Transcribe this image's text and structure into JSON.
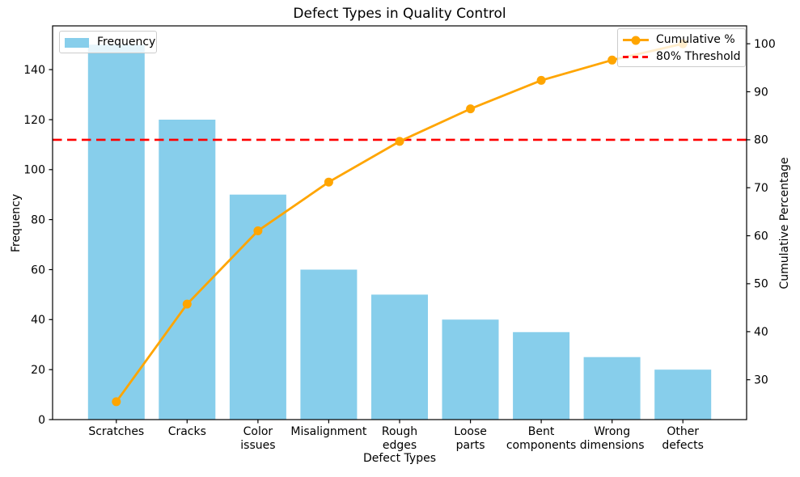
{
  "chart_data": {
    "type": "pareto_bar_line",
    "title": "Defect Types in Quality Control",
    "xlabel": "Defect Types",
    "ylabel_left": "Frequency",
    "ylabel_right": "Cumulative Percentage",
    "categories": [
      "Scratches",
      "Cracks",
      "Color issues",
      "Misalignment",
      "Rough edges",
      "Loose parts",
      "Bent components",
      "Wrong dimensions",
      "Other defects"
    ],
    "category_label_lines": [
      [
        "Scratches"
      ],
      [
        "Cracks"
      ],
      [
        "Color",
        "issues"
      ],
      [
        "Misalignment"
      ],
      [
        "Rough",
        "edges"
      ],
      [
        "Loose",
        "parts"
      ],
      [
        "Bent",
        "components"
      ],
      [
        "Wrong",
        "dimensions"
      ],
      [
        "Other",
        "defects"
      ]
    ],
    "series": [
      {
        "name": "Frequency",
        "kind": "bar",
        "color": "#87CEEB",
        "values": [
          150,
          120,
          90,
          60,
          50,
          40,
          35,
          25,
          20
        ]
      },
      {
        "name": "Cumulative %",
        "kind": "line",
        "color": "#FFA500",
        "values": [
          25.42,
          45.76,
          61.02,
          71.19,
          79.66,
          86.44,
          92.37,
          96.61,
          100.0
        ]
      }
    ],
    "threshold": {
      "label": "80% Threshold",
      "value": 80,
      "color": "#FF0000",
      "style": "dashed"
    },
    "axes": {
      "left": {
        "ticks": [
          0,
          20,
          40,
          60,
          80,
          100,
          120,
          140
        ],
        "range": [
          0,
          157.5
        ]
      },
      "right": {
        "ticks": [
          30,
          40,
          50,
          60,
          70,
          80,
          90,
          100
        ],
        "range": [
          21.69,
          103.73
        ]
      },
      "x": {
        "range": [
          -0.9,
          8.9
        ]
      }
    },
    "legend_left_items": [
      "Frequency"
    ],
    "legend_right_items": [
      "Cumulative %",
      "80% Threshold"
    ],
    "grid": false,
    "background": "#FFFFFF",
    "bar_width_units": 0.8
  }
}
